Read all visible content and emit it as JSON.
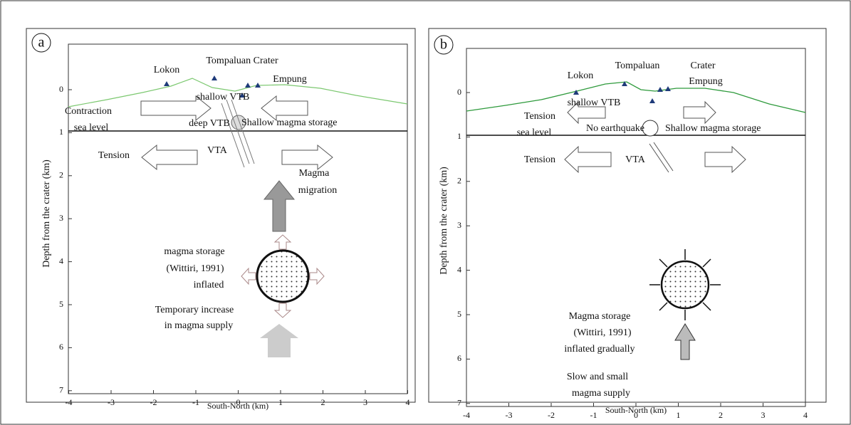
{
  "panels": [
    {
      "label": "a",
      "x_label": "South-North (km)",
      "y_label": "Depth from the crater (km)",
      "xticks": [
        -4,
        -3,
        -2,
        -1,
        0,
        1,
        2,
        3,
        4
      ],
      "yticks": [
        0,
        1,
        2,
        3,
        4,
        5,
        6,
        7
      ],
      "annotations": [
        "Lokon",
        "Tompaluan Crater",
        "Empung",
        "shallow VTB",
        "Contraction",
        "sea level",
        "deep VTB",
        "Shallow magma storage",
        "Tension",
        "VTA",
        "Magma",
        "migration",
        "magma storage",
        "(Wittiri, 1991)",
        "inflated",
        "Temporary increase",
        "in magma supply"
      ]
    },
    {
      "label": "b",
      "x_label": "South-North (km)",
      "y_label": "Depth from the crater (km)",
      "xticks": [
        -4,
        -3,
        -2,
        -1,
        0,
        1,
        2,
        3,
        4
      ],
      "yticks": [
        0,
        1,
        2,
        3,
        4,
        5,
        6,
        7
      ],
      "annotations": [
        "Lokon",
        "Tompaluan",
        "Crater",
        "Empung",
        "shallow VTB",
        "Tension",
        "sea level",
        "No earthquake",
        "Shallow magma storage",
        "Tension",
        "VTA",
        "Magma storage",
        "(Wittiri, 1991)",
        "inflated gradually",
        "Slow and small",
        "magma supply"
      ]
    }
  ]
}
